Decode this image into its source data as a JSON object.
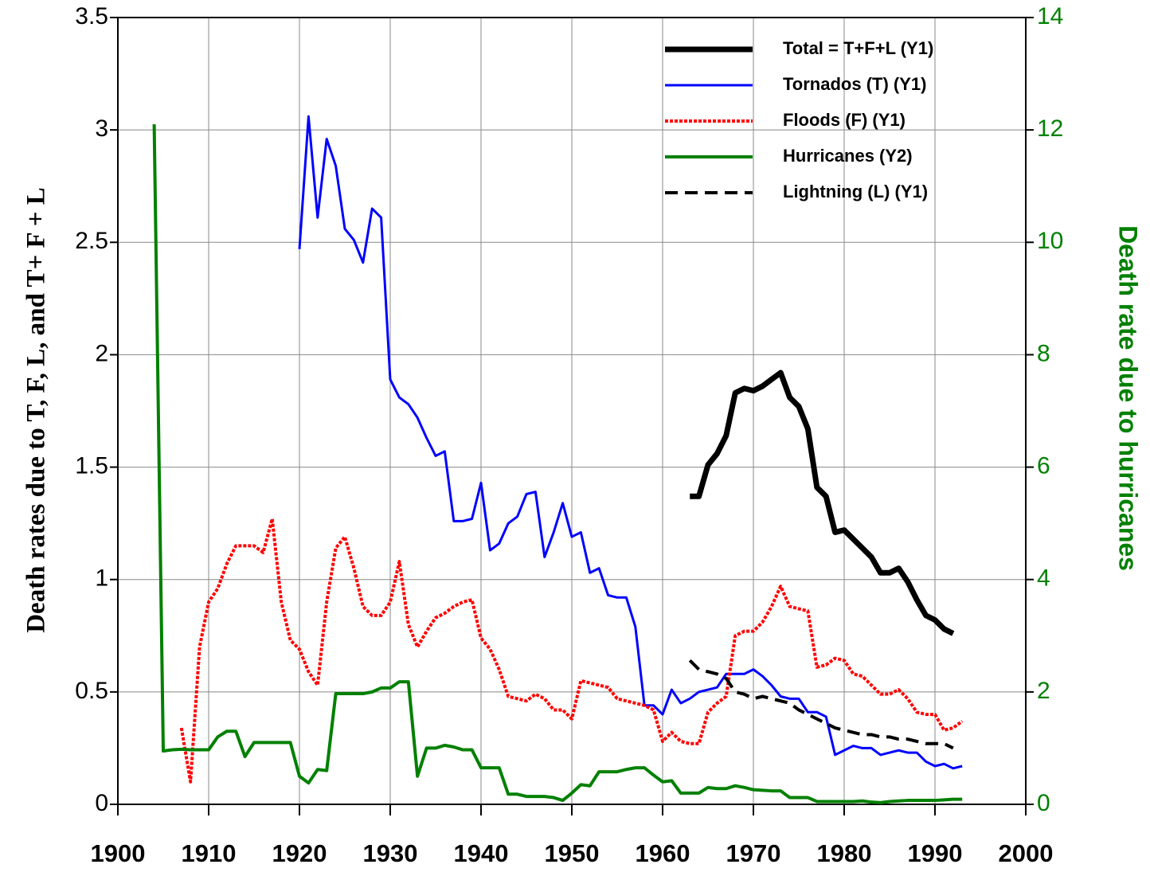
{
  "chart_data": {
    "type": "line",
    "x": [
      1904,
      1905,
      1906,
      1907,
      1908,
      1909,
      1910,
      1911,
      1912,
      1913,
      1914,
      1915,
      1916,
      1917,
      1918,
      1919,
      1920,
      1921,
      1922,
      1923,
      1924,
      1925,
      1926,
      1927,
      1928,
      1929,
      1930,
      1931,
      1932,
      1933,
      1934,
      1935,
      1936,
      1937,
      1938,
      1939,
      1940,
      1941,
      1942,
      1943,
      1944,
      1945,
      1946,
      1947,
      1948,
      1949,
      1950,
      1951,
      1952,
      1953,
      1954,
      1955,
      1956,
      1957,
      1958,
      1959,
      1960,
      1961,
      1962,
      1963,
      1964,
      1965,
      1966,
      1967,
      1968,
      1969,
      1970,
      1971,
      1972,
      1973,
      1974,
      1975,
      1976,
      1977,
      1978,
      1979,
      1980,
      1981,
      1982,
      1983,
      1984,
      1985,
      1986,
      1987,
      1988,
      1989,
      1990,
      1991,
      1992,
      1993
    ],
    "xlim": [
      1900,
      2000
    ],
    "xticks": [
      1900,
      1910,
      1920,
      1930,
      1940,
      1950,
      1960,
      1970,
      1980,
      1990,
      2000
    ],
    "ylim": [
      0,
      3.5
    ],
    "yticks": [
      0,
      0.5,
      1,
      1.5,
      2,
      2.5,
      3,
      3.5
    ],
    "y2lim": [
      0,
      14
    ],
    "y2ticks": [
      0,
      2,
      4,
      6,
      8,
      10,
      12,
      14
    ],
    "ylabel": "Death rates due to T, F, L, and T+ F + L",
    "y2label": "Death rate due to hurricanes",
    "grid": true,
    "legend": "upper right",
    "series": [
      {
        "name": "Total = T+F+L (Y1)",
        "color": "#000000",
        "line_width": 7,
        "style": "solid",
        "values": [
          null,
          null,
          null,
          null,
          null,
          null,
          null,
          null,
          null,
          null,
          null,
          null,
          null,
          null,
          null,
          null,
          null,
          null,
          null,
          null,
          null,
          null,
          null,
          null,
          null,
          null,
          null,
          null,
          null,
          null,
          null,
          null,
          null,
          null,
          null,
          null,
          null,
          null,
          null,
          null,
          null,
          null,
          null,
          null,
          null,
          null,
          null,
          null,
          null,
          null,
          null,
          null,
          null,
          null,
          null,
          null,
          null,
          null,
          null,
          1.37,
          1.37,
          1.51,
          1.56,
          1.64,
          1.83,
          1.85,
          1.84,
          1.86,
          1.89,
          1.92,
          1.81,
          1.77,
          1.67,
          1.41,
          1.37,
          1.21,
          1.22,
          1.18,
          1.14,
          1.1,
          1.03,
          1.03,
          1.05,
          0.99,
          0.91,
          0.84,
          0.82,
          0.78,
          0.76,
          null
        ]
      },
      {
        "name": "Tornados (T) (Y1)",
        "color": "#0000ff",
        "line_width": 3,
        "style": "solid",
        "values": [
          null,
          null,
          null,
          null,
          null,
          null,
          null,
          null,
          null,
          null,
          null,
          null,
          null,
          null,
          null,
          null,
          2.47,
          3.06,
          2.61,
          2.96,
          2.84,
          2.56,
          2.51,
          2.41,
          2.65,
          2.61,
          1.89,
          1.81,
          1.78,
          1.72,
          1.63,
          1.55,
          1.57,
          1.26,
          1.26,
          1.27,
          1.43,
          1.13,
          1.16,
          1.25,
          1.28,
          1.38,
          1.39,
          1.1,
          1.21,
          1.34,
          1.19,
          1.21,
          1.03,
          1.05,
          0.93,
          0.92,
          0.92,
          0.79,
          0.44,
          0.44,
          0.4,
          0.51,
          0.45,
          0.47,
          0.5,
          0.51,
          0.52,
          0.58,
          0.58,
          0.58,
          0.6,
          0.57,
          0.53,
          0.48,
          0.47,
          0.47,
          0.41,
          0.41,
          0.39,
          0.22,
          0.24,
          0.26,
          0.25,
          0.25,
          0.22,
          0.23,
          0.24,
          0.23,
          0.23,
          0.19,
          0.17,
          0.18,
          0.16,
          0.17
        ]
      },
      {
        "name": "Floods (F) (Y1)",
        "color": "#ff0000",
        "line_width": 4,
        "style": "dotted",
        "values": [
          null,
          null,
          null,
          0.34,
          0.1,
          0.7,
          0.9,
          0.96,
          1.07,
          1.15,
          1.15,
          1.15,
          1.12,
          1.27,
          0.9,
          0.73,
          0.69,
          0.59,
          0.53,
          0.9,
          1.14,
          1.19,
          1.05,
          0.88,
          0.84,
          0.84,
          0.9,
          1.08,
          0.8,
          0.7,
          0.77,
          0.83,
          0.85,
          0.88,
          0.9,
          0.91,
          0.74,
          0.69,
          0.6,
          0.48,
          0.47,
          0.46,
          0.49,
          0.47,
          0.42,
          0.42,
          0.38,
          0.55,
          0.54,
          0.53,
          0.52,
          0.47,
          0.46,
          0.45,
          0.44,
          0.42,
          0.28,
          0.32,
          0.28,
          0.27,
          0.27,
          0.41,
          0.45,
          0.48,
          0.75,
          0.77,
          0.77,
          0.81,
          0.88,
          0.97,
          0.88,
          0.87,
          0.86,
          0.61,
          0.62,
          0.65,
          0.64,
          0.58,
          0.57,
          0.53,
          0.49,
          0.49,
          0.51,
          0.47,
          0.41,
          0.4,
          0.4,
          0.33,
          0.34,
          0.37
        ]
      },
      {
        "name": "Hurricanes (Y2)",
        "color": "#008000",
        "line_width": 4,
        "style": "solid",
        "axis": "y2",
        "values": [
          12.1,
          0.95,
          0.97,
          0.98,
          0.97,
          0.97,
          0.97,
          1.2,
          1.3,
          1.3,
          0.85,
          1.1,
          1.1,
          1.1,
          1.1,
          1.1,
          0.5,
          0.38,
          0.62,
          0.6,
          1.97,
          1.97,
          1.97,
          1.97,
          2.0,
          2.07,
          2.07,
          2.18,
          2.18,
          0.5,
          1.0,
          1.0,
          1.05,
          1.02,
          0.97,
          0.97,
          0.65,
          0.65,
          0.65,
          0.18,
          0.18,
          0.14,
          0.14,
          0.14,
          0.12,
          0.07,
          0.2,
          0.35,
          0.33,
          0.58,
          0.58,
          0.58,
          0.62,
          0.65,
          0.65,
          0.52,
          0.4,
          0.42,
          0.2,
          0.2,
          0.2,
          0.3,
          0.28,
          0.28,
          0.33,
          0.3,
          0.26,
          0.25,
          0.24,
          0.24,
          0.12,
          0.12,
          0.12,
          0.05,
          0.05,
          0.05,
          0.05,
          0.05,
          0.06,
          0.04,
          0.03,
          0.05,
          0.06,
          0.07,
          0.07,
          0.07,
          0.07,
          0.08,
          0.09,
          0.09
        ]
      },
      {
        "name": "Lightning (L) (Y1)",
        "color": "#000000",
        "line_width": 4,
        "style": "dashed",
        "values": [
          null,
          null,
          null,
          null,
          null,
          null,
          null,
          null,
          null,
          null,
          null,
          null,
          null,
          null,
          null,
          null,
          null,
          null,
          null,
          null,
          null,
          null,
          null,
          null,
          null,
          null,
          null,
          null,
          null,
          null,
          null,
          null,
          null,
          null,
          null,
          null,
          null,
          null,
          null,
          null,
          null,
          null,
          null,
          null,
          null,
          null,
          null,
          null,
          null,
          null,
          null,
          null,
          null,
          null,
          null,
          null,
          null,
          null,
          null,
          0.64,
          0.6,
          0.59,
          0.58,
          0.56,
          0.5,
          0.49,
          0.47,
          0.48,
          0.47,
          0.46,
          0.45,
          0.42,
          0.4,
          0.38,
          0.36,
          0.34,
          0.33,
          0.32,
          0.31,
          0.31,
          0.3,
          0.3,
          0.29,
          0.29,
          0.28,
          0.27,
          0.27,
          0.27,
          0.25,
          null
        ]
      }
    ]
  }
}
